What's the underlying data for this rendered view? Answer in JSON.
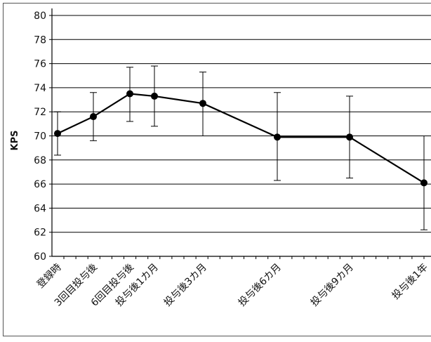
{
  "chart_data": {
    "type": "line",
    "title": "",
    "xlabel": "",
    "ylabel": "KPS",
    "ylim": [
      60,
      80
    ],
    "yticks": [
      60,
      62,
      64,
      66,
      68,
      70,
      72,
      74,
      76,
      78,
      80
    ],
    "grid": true,
    "legend": "none",
    "categories": [
      "登録時",
      "3回目投与後",
      "6回目投与後",
      "投与後1カ月",
      "投与後3カ月",
      "投与後6カ月",
      "投与後9カ月",
      "投与後1年"
    ],
    "series": [
      {
        "values": [
          70.2,
          71.6,
          73.5,
          73.3,
          72.7,
          69.9,
          69.9,
          66.1
        ],
        "error_low": [
          68.4,
          69.6,
          71.2,
          70.8,
          70.0,
          66.3,
          66.5,
          62.2
        ],
        "error_high": [
          72.0,
          73.6,
          75.7,
          75.8,
          75.3,
          73.6,
          73.3,
          70.0
        ],
        "color": "#000000"
      }
    ]
  }
}
